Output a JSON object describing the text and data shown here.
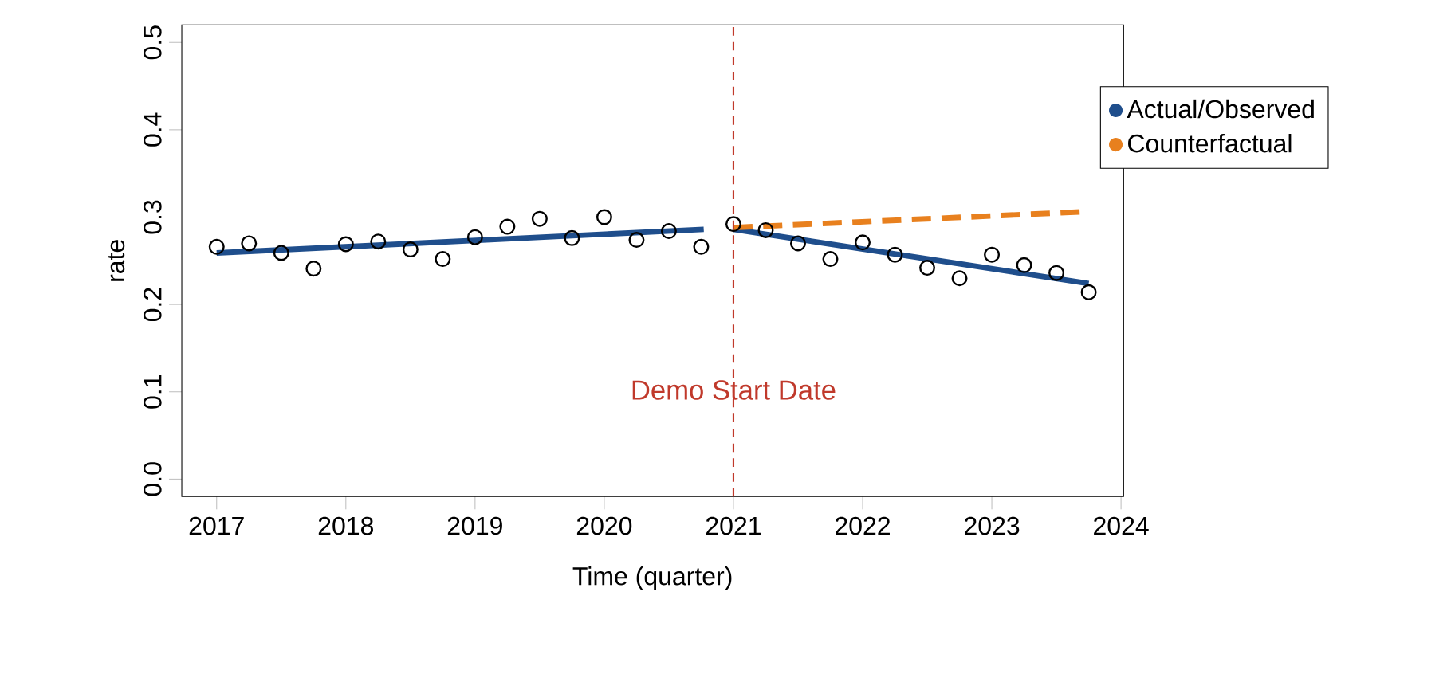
{
  "chart_data": {
    "type": "scatter",
    "xlabel": "Time (quarter)",
    "ylabel": "rate",
    "x": [
      2017,
      2017.25,
      2017.5,
      2017.75,
      2018,
      2018.25,
      2018.5,
      2018.75,
      2019,
      2019.25,
      2019.5,
      2019.75,
      2020,
      2020.25,
      2020.5,
      2020.75,
      2021,
      2021.25,
      2021.5,
      2021.75,
      2022,
      2022.25,
      2022.5,
      2022.75,
      2023,
      2023.25,
      2023.5,
      2023.75
    ],
    "xlim": [
      2016.73,
      2024.02
    ],
    "ylim": [
      -0.02,
      0.52
    ],
    "xticks": [
      2017,
      2018,
      2019,
      2020,
      2021,
      2022,
      2023,
      2024
    ],
    "yticks": [
      {
        "value": 0,
        "label": "0.0"
      },
      0.1,
      0.2,
      0.3,
      0.4,
      0.5
    ],
    "grid": false,
    "legend": "right",
    "series": [
      {
        "color": "#000000",
        "marker": "circle",
        "values": [
          0.266,
          0.27,
          0.259,
          0.241,
          0.269,
          0.272,
          0.263,
          0.252,
          0.277,
          0.289,
          0.298,
          0.276,
          0.3,
          0.274,
          0.284,
          0.266,
          0.292,
          0.285,
          0.27,
          0.252,
          0.271,
          0.257,
          0.242,
          0.23,
          0.257,
          0.245,
          0.236,
          0.214
        ]
      },
      {
        "type": "line",
        "name": "Actual/Observed",
        "color": "#1f4e8c",
        "x": [
          2017,
          2020.77
        ],
        "values": [
          0.259,
          0.286
        ]
      },
      {
        "type": "line",
        "color": "#1f4e8c",
        "x": [
          2021,
          2023.75
        ],
        "values": [
          0.286,
          0.224
        ]
      },
      {
        "type": "line",
        "name": "Counterfactual",
        "color": "#e8801e",
        "line_style": "dashed",
        "x": [
          2021,
          2023.7
        ],
        "values": [
          0.288,
          0.306
        ]
      }
    ],
    "ref_lines": [
      {
        "axis": "x",
        "value": 2021,
        "label": "Demo Start Date",
        "color": "#c0392b",
        "line_style": "dashed"
      }
    ]
  }
}
